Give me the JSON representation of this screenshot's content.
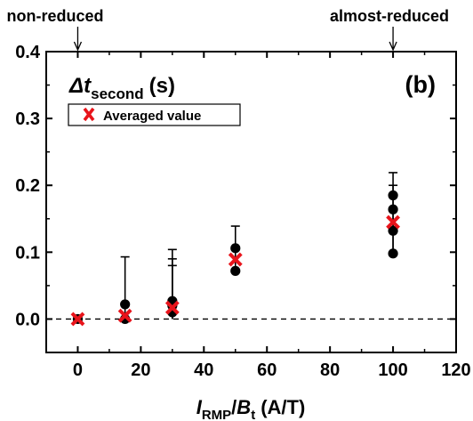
{
  "chart_data": {
    "type": "scatter",
    "panel_label": "(b)",
    "annotations": {
      "top_left": "non-reduced",
      "top_right": "almost-reduced",
      "top_left_x": 0,
      "top_right_x": 100
    },
    "inner_title": {
      "symbol": "Δt",
      "subscript": "second",
      "unit": "(s)"
    },
    "xlabel": {
      "var1": "I",
      "sub1": "RMP",
      "slash": "/",
      "var2": "B",
      "sub2": "t",
      "unit": "(A/T)"
    },
    "xlim": [
      -10,
      120
    ],
    "ylim": [
      -0.05,
      0.4
    ],
    "xticks": [
      0,
      20,
      40,
      60,
      80,
      100,
      120
    ],
    "yticks": [
      0.0,
      0.1,
      0.2,
      0.3,
      0.4
    ],
    "xtick_labels": [
      "0",
      "20",
      "40",
      "60",
      "80",
      "100",
      "120"
    ],
    "ytick_labels": [
      "0.0",
      "0.1",
      "0.2",
      "0.3",
      "0.4"
    ],
    "reference_line_y": 0,
    "legend": {
      "label": "Averaged value",
      "placement": "top-left"
    },
    "series": [
      {
        "kind": "individual",
        "color": "#000000",
        "points": [
          {
            "x": 0,
            "y": 0.0
          },
          {
            "x": 15,
            "y": 0.022
          },
          {
            "x": 15,
            "y": 0.0
          },
          {
            "x": 30,
            "y": 0.027
          },
          {
            "x": 30,
            "y": 0.02
          },
          {
            "x": 30,
            "y": 0.01
          },
          {
            "x": 50,
            "y": 0.106
          },
          {
            "x": 50,
            "y": 0.072
          },
          {
            "x": 100,
            "y": 0.185
          },
          {
            "x": 100,
            "y": 0.164
          },
          {
            "x": 100,
            "y": 0.132
          },
          {
            "x": 100,
            "y": 0.098
          }
        ]
      },
      {
        "kind": "averaged",
        "name": "Averaged value",
        "color": "#e8141b",
        "points": [
          {
            "x": 0,
            "y": 0.0
          },
          {
            "x": 15,
            "y": 0.005
          },
          {
            "x": 30,
            "y": 0.017
          },
          {
            "x": 50,
            "y": 0.089
          },
          {
            "x": 100,
            "y": 0.145
          }
        ]
      }
    ],
    "error_bars": [
      {
        "x": 15,
        "y_low": 0.0,
        "y_high": 0.093
      },
      {
        "x": 30,
        "y_low": 0.0,
        "y_high": 0.104
      },
      {
        "x": 30,
        "y_low": 0.0,
        "y_high": 0.09
      },
      {
        "x": 30,
        "y_low": 0.0,
        "y_high": 0.08
      },
      {
        "x": 50,
        "y_low": 0.072,
        "y_high": 0.139
      },
      {
        "x": 100,
        "y_low": 0.098,
        "y_high": 0.219
      },
      {
        "x": 100,
        "y_low": 0.098,
        "y_high": 0.2
      }
    ]
  }
}
